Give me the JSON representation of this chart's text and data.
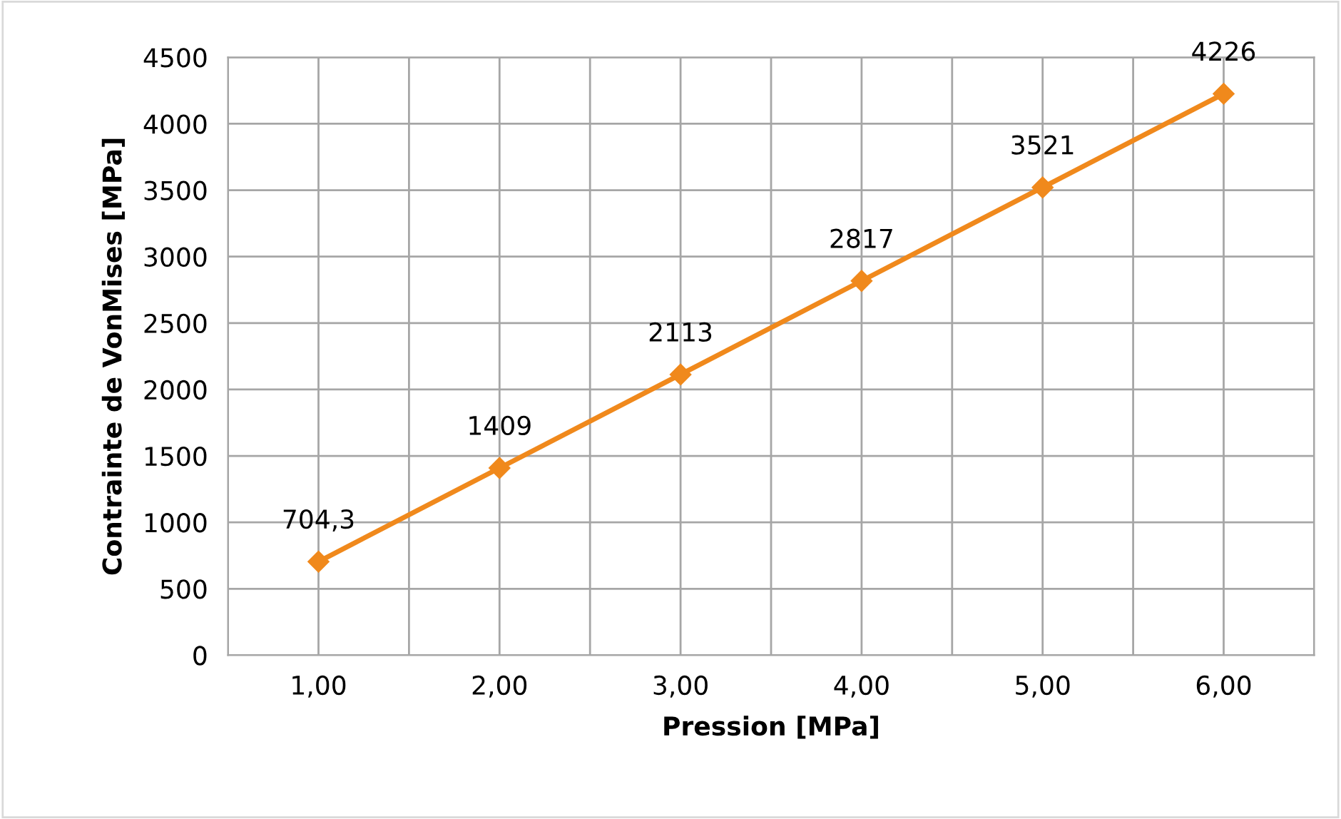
{
  "chart_data": {
    "type": "line",
    "xlabel": "Pression [MPa]",
    "ylabel": "Contrainte de VonMises [MPa]",
    "x": [
      1,
      2,
      3,
      4,
      5,
      6
    ],
    "series": [
      {
        "color": "#f0891c",
        "values": [
          704.3,
          1409,
          2113,
          2817,
          3521,
          4226
        ],
        "value_labels": [
          "704,3",
          "1409",
          "2113",
          "2817",
          "3521",
          "4226"
        ]
      }
    ],
    "xlim": [
      0.5,
      6.5
    ],
    "xticks": [
      {
        "value": 0.5,
        "label": null
      },
      {
        "value": 1,
        "label": "1,00"
      },
      {
        "value": 1.5,
        "label": null
      },
      {
        "value": 2,
        "label": "2,00"
      },
      {
        "value": 2.5,
        "label": null
      },
      {
        "value": 3,
        "label": "3,00"
      },
      {
        "value": 3.5,
        "label": null
      },
      {
        "value": 4,
        "label": "4,00"
      },
      {
        "value": 4.5,
        "label": null
      },
      {
        "value": 5,
        "label": "5,00"
      },
      {
        "value": 5.5,
        "label": null
      },
      {
        "value": 6,
        "label": "6,00"
      },
      {
        "value": 6.5,
        "label": null
      }
    ],
    "ylim": [
      0,
      4500
    ],
    "yticks": [
      0,
      500,
      1000,
      1500,
      2000,
      2500,
      3000,
      3500,
      4000,
      4500
    ],
    "grid": true,
    "marker": "diamond",
    "line_style": "solid"
  }
}
